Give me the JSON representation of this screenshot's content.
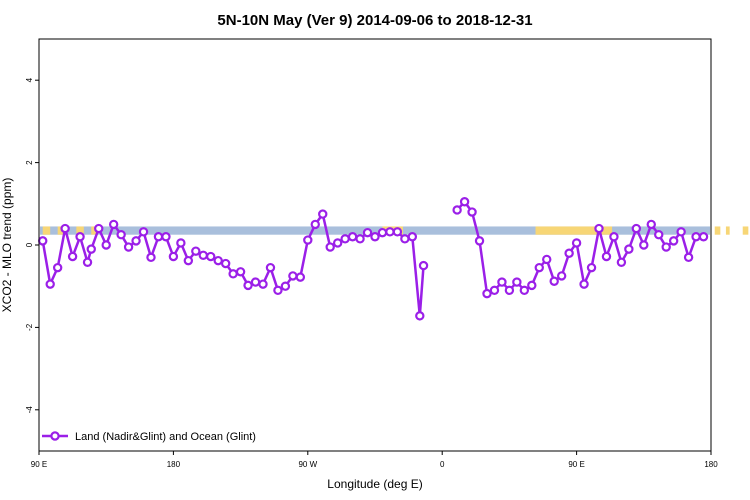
{
  "chart_data": {
    "type": "line",
    "title": "5N-10N May (Ver 9)   2014-09-06 to 2018-12-31",
    "xlabel": "Longitude (deg E)",
    "ylabel": "XCO2 - MLO trend (ppm)",
    "xlim": [
      90,
      450
    ],
    "ylim": [
      -5,
      5
    ],
    "x_ticks": [
      {
        "value": 90,
        "label": "90 E"
      },
      {
        "value": 180,
        "label": "180"
      },
      {
        "value": 270,
        "label": "90 W"
      },
      {
        "value": 360,
        "label": "0"
      },
      {
        "value": 450,
        "label": "90 E"
      },
      {
        "value": 540,
        "label": "180"
      }
    ],
    "y_ticks": [
      {
        "value": 4,
        "label": "4"
      },
      {
        "value": 2,
        "label": "2"
      },
      {
        "value": 0,
        "label": "0"
      },
      {
        "value": -2,
        "label": "-2"
      },
      {
        "value": -4,
        "label": "-4"
      }
    ],
    "x_tick_note": "ticks at 90E,180,90W,0,90E,180 spanning 90..540 (longitude wraps)",
    "color_map_band": {
      "y_range": [
        0.25,
        0.45
      ],
      "ocean_color": "#a9bfdc",
      "land_color": "#f7d676",
      "land_segments": [
        [
          92,
          96
        ],
        [
          100,
          103
        ],
        [
          110,
          114
        ],
        [
          118,
          121
        ],
        [
          274,
          285
        ],
        [
          356,
          397
        ],
        [
          452,
          455
        ],
        [
          458,
          460
        ],
        [
          467,
          470
        ],
        [
          476,
          480
        ],
        [
          496,
          499
        ]
      ]
    },
    "series": [
      {
        "name": "Land (Nadir&Glint) and Ocean (Glint)",
        "color": "#9b1fe8",
        "segments": [
          [
            [
              92,
              0.1
            ],
            [
              96,
              -0.95
            ],
            [
              100,
              -0.55
            ],
            [
              104,
              0.4
            ],
            [
              108,
              -0.28
            ],
            [
              112,
              0.2
            ],
            [
              116,
              -0.42
            ],
            [
              118,
              -0.1
            ],
            [
              122,
              0.4
            ],
            [
              126,
              0.0
            ],
            [
              130,
              0.5
            ],
            [
              134,
              0.25
            ],
            [
              138,
              -0.05
            ],
            [
              142,
              0.1
            ],
            [
              146,
              0.32
            ],
            [
              150,
              -0.3
            ],
            [
              154,
              0.2
            ],
            [
              158,
              0.2
            ],
            [
              162,
              -0.28
            ],
            [
              166,
              0.05
            ],
            [
              170,
              -0.38
            ],
            [
              174,
              -0.15
            ],
            [
              178,
              -0.25
            ],
            [
              182,
              -0.28
            ],
            [
              186,
              -0.38
            ],
            [
              190,
              -0.45
            ],
            [
              194,
              -0.7
            ],
            [
              198,
              -0.65
            ],
            [
              202,
              -0.98
            ],
            [
              206,
              -0.9
            ],
            [
              210,
              -0.95
            ],
            [
              214,
              -0.55
            ],
            [
              218,
              -1.1
            ],
            [
              222,
              -1.0
            ],
            [
              226,
              -0.75
            ],
            [
              230,
              -0.78
            ],
            [
              234,
              0.12
            ],
            [
              238,
              0.5
            ],
            [
              242,
              0.75
            ],
            [
              246,
              -0.05
            ],
            [
              250,
              0.05
            ],
            [
              254,
              0.15
            ],
            [
              258,
              0.2
            ],
            [
              262,
              0.15
            ],
            [
              266,
              0.3
            ],
            [
              270,
              0.2
            ],
            [
              274,
              0.3
            ],
            [
              278,
              0.32
            ],
            [
              282,
              0.32
            ],
            [
              286,
              0.15
            ],
            [
              290,
              0.2
            ],
            [
              294,
              -1.72
            ],
            [
              296,
              -0.5
            ]
          ],
          [
            [
              314,
              0.85
            ],
            [
              318,
              1.05
            ],
            [
              322,
              0.8
            ],
            [
              326,
              0.1
            ],
            [
              330,
              -1.18
            ],
            [
              334,
              -1.1
            ],
            [
              338,
              -0.9
            ],
            [
              342,
              -1.1
            ],
            [
              346,
              -0.9
            ],
            [
              350,
              -1.1
            ],
            [
              354,
              -0.98
            ],
            [
              358,
              -0.55
            ],
            [
              362,
              -0.35
            ],
            [
              366,
              -0.88
            ],
            [
              370,
              -0.75
            ],
            [
              374,
              -0.2
            ],
            [
              378,
              0.05
            ],
            [
              382,
              -0.95
            ],
            [
              386,
              -0.55
            ],
            [
              390,
              0.4
            ],
            [
              394,
              -0.28
            ],
            [
              398,
              0.2
            ],
            [
              402,
              -0.42
            ],
            [
              406,
              -0.1
            ],
            [
              410,
              0.4
            ],
            [
              414,
              0.0
            ],
            [
              418,
              0.5
            ],
            [
              422,
              0.25
            ],
            [
              426,
              -0.05
            ],
            [
              430,
              0.1
            ],
            [
              434,
              0.32
            ],
            [
              438,
              -0.3
            ],
            [
              442,
              0.2
            ],
            [
              446,
              0.2
            ]
          ]
        ]
      }
    ],
    "legend": {
      "placement": "bottom-left",
      "entries": [
        "Land (Nadir&Glint) and Ocean (Glint)"
      ]
    },
    "grid": false
  }
}
